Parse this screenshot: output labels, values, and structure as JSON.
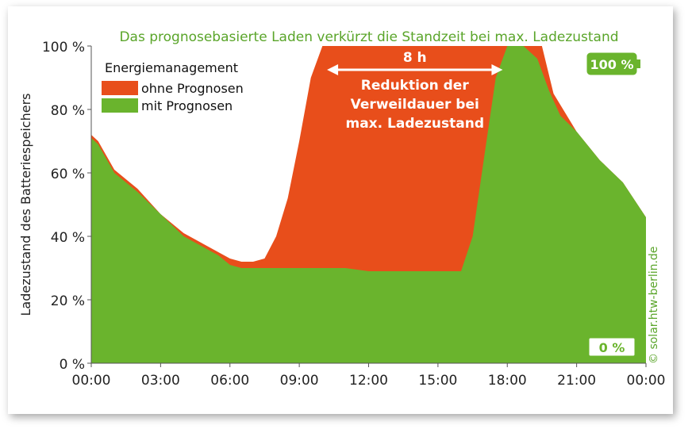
{
  "chart_data": {
    "type": "area",
    "title": "Das prognosebasierte Laden verkürzt die Standzeit bei max. Ladezustand",
    "ylabel": "Ladezustand des Batteriespeichers",
    "xlabel": "",
    "xlim": [
      0,
      24
    ],
    "ylim": [
      0,
      100
    ],
    "x_ticks": [
      "00:00",
      "03:00",
      "06:00",
      "09:00",
      "12:00",
      "15:00",
      "18:00",
      "21:00",
      "00:00"
    ],
    "y_ticks": [
      "0 %",
      "20 %",
      "40 %",
      "60 %",
      "80 %",
      "100 %"
    ],
    "legend_title": "Energiemanagement",
    "legend_position": "top-left",
    "series": [
      {
        "name": "ohne Prognosen",
        "color": "#e84e1b",
        "x": [
          0,
          0.3,
          1,
          2,
          3,
          4,
          5,
          5.5,
          6,
          6.5,
          7,
          7.5,
          8,
          8.5,
          9,
          9.5,
          10,
          11,
          12,
          13,
          14,
          15,
          16,
          17,
          18,
          18.7,
          19.5,
          20,
          21,
          22,
          23,
          24
        ],
        "values": [
          72,
          70,
          61,
          55,
          47,
          41,
          37,
          35,
          33,
          32,
          32,
          33,
          40,
          52,
          70,
          90,
          100,
          100,
          100,
          100,
          100,
          100,
          100,
          100,
          100,
          100,
          100,
          85,
          73,
          64,
          57,
          46
        ]
      },
      {
        "name": "mit Prognosen",
        "color": "#6ab42d",
        "x": [
          0,
          0.3,
          1,
          2,
          3,
          4,
          5,
          5.5,
          6,
          6.5,
          7,
          8,
          9,
          10,
          11,
          12,
          13,
          14,
          15,
          16,
          16.5,
          17,
          17.5,
          18,
          18.7,
          19.3,
          19.8,
          20.3,
          21,
          22,
          23,
          24
        ],
        "values": [
          71,
          69,
          60,
          54,
          47,
          40,
          36,
          34,
          31,
          30,
          30,
          30,
          30,
          30,
          30,
          29,
          29,
          29,
          29,
          29,
          40,
          65,
          90,
          100,
          100,
          96,
          86,
          78,
          73,
          64,
          57,
          46
        ]
      }
    ],
    "annotations": {
      "duration": "8 h",
      "text_lines": [
        "Reduktion der",
        "Verweildauer bei",
        "max. Ladezustand"
      ],
      "arrow_from": 10.2,
      "arrow_to": 17.8,
      "battery_full": "100 %",
      "battery_empty": "0 %",
      "credit": "© solar.htw-berlin.de"
    }
  },
  "colors": {
    "title": "#5aa52a",
    "axis_text": "#222222",
    "annotation_text": "#ffffff",
    "battery": "#6ab42d",
    "credit": "#5aa52a"
  }
}
